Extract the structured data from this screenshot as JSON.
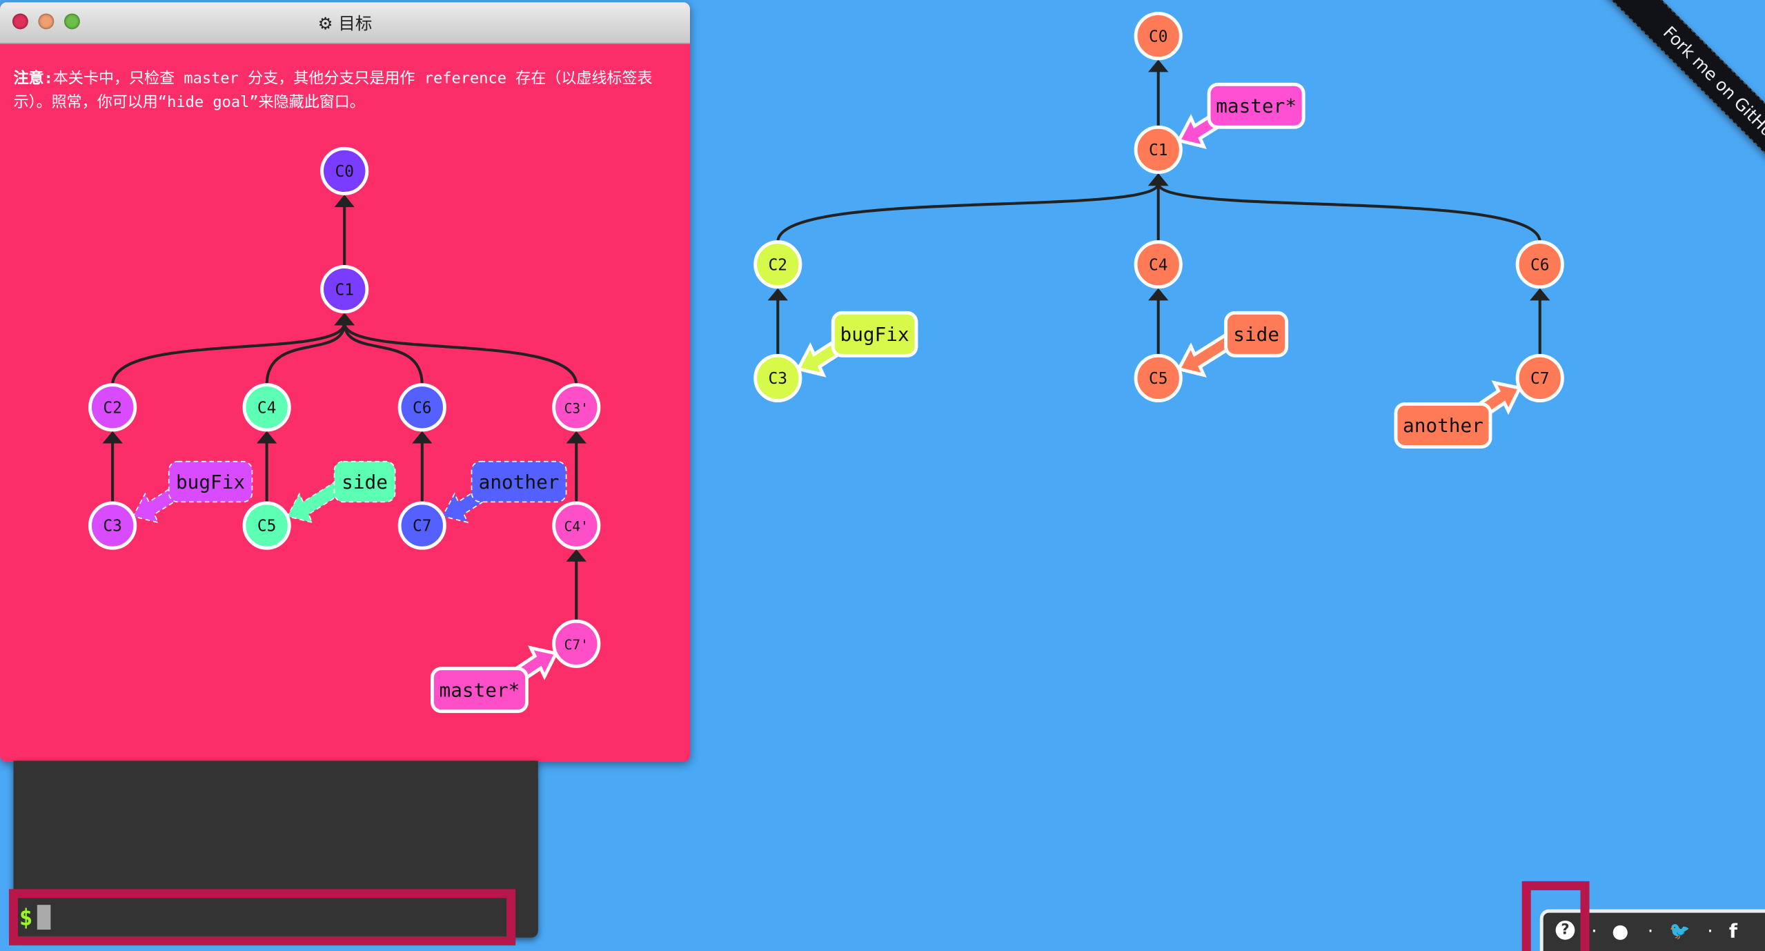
{
  "goal_window": {
    "title": "目标",
    "title_icon": "gear-icon",
    "note_bold": "注意:",
    "note_text": "本关卡中，只检查 master 分支，其他分支只是用作 reference 存在（以虚线标签表示）。照常，你可以用“hide goal”来隐藏此窗口。",
    "traffic_lights": [
      "#e0315a",
      "#f0a070",
      "#6cc04a"
    ]
  },
  "goal_graph": {
    "commits": [
      {
        "id": "C0",
        "parent": null,
        "color": "#7a3cff"
      },
      {
        "id": "C1",
        "parent": "C0",
        "color": "#7a3cff"
      },
      {
        "id": "C2",
        "parent": "C1",
        "color": "#d84bff"
      },
      {
        "id": "C4",
        "parent": "C1",
        "color": "#5cffb4"
      },
      {
        "id": "C6",
        "parent": "C1",
        "color": "#5460ff"
      },
      {
        "id": "C3'",
        "parent": "C1",
        "color": "#ff4fc8"
      },
      {
        "id": "C3",
        "parent": "C2",
        "color": "#d84bff"
      },
      {
        "id": "C5",
        "parent": "C4",
        "color": "#5cffb4"
      },
      {
        "id": "C7",
        "parent": "C6",
        "color": "#5460ff"
      },
      {
        "id": "C4'",
        "parent": "C3'",
        "color": "#ff4fc8"
      },
      {
        "id": "C7'",
        "parent": "C4'",
        "color": "#ff4fc8"
      }
    ],
    "branches": [
      {
        "name": "bugFix",
        "target": "C3",
        "color": "#d84bff",
        "dashed": true
      },
      {
        "name": "side",
        "target": "C5",
        "color": "#5cffb4",
        "dashed": true
      },
      {
        "name": "another",
        "target": "C7",
        "color": "#5460ff",
        "dashed": true
      },
      {
        "name": "master*",
        "target": "C7'",
        "color": "#ff4fc8",
        "dashed": false
      }
    ]
  },
  "main_graph": {
    "commits": [
      {
        "id": "C0",
        "parent": null,
        "color": "#ff7a57"
      },
      {
        "id": "C1",
        "parent": "C0",
        "color": "#ff7a57"
      },
      {
        "id": "C2",
        "parent": "C1",
        "color": "#d6f94a"
      },
      {
        "id": "C4",
        "parent": "C1",
        "color": "#ff7a57"
      },
      {
        "id": "C6",
        "parent": "C1",
        "color": "#ff7a57"
      },
      {
        "id": "C3",
        "parent": "C2",
        "color": "#d6f94a"
      },
      {
        "id": "C5",
        "parent": "C4",
        "color": "#ff7a57"
      },
      {
        "id": "C7",
        "parent": "C6",
        "color": "#ff7a57"
      }
    ],
    "branches": [
      {
        "name": "master*",
        "target": "C1",
        "color": "#ff4fd2",
        "dashed": false
      },
      {
        "name": "bugFix",
        "target": "C3",
        "color": "#d6f94a",
        "dashed": false
      },
      {
        "name": "side",
        "target": "C5",
        "color": "#ff7a57",
        "dashed": false
      },
      {
        "name": "another",
        "target": "C7",
        "color": "#ff7a57",
        "dashed": false
      }
    ]
  },
  "terminal": {
    "prompt": "$",
    "input_value": ""
  },
  "footer": {
    "icons": [
      "help-icon",
      "globe-icon",
      "twitter-icon",
      "facebook-icon"
    ],
    "help_glyph": "?",
    "globe_glyph": "●",
    "twitter_glyph": "🐦",
    "facebook_glyph": "f",
    "separator": "·"
  },
  "ribbon": {
    "text": "Fork me on GitHub"
  },
  "colors": {
    "background": "#4aa8f5",
    "goal_bg": "#fc2e6a",
    "highlight": "#b8174b",
    "terminal_bg": "#333333"
  }
}
